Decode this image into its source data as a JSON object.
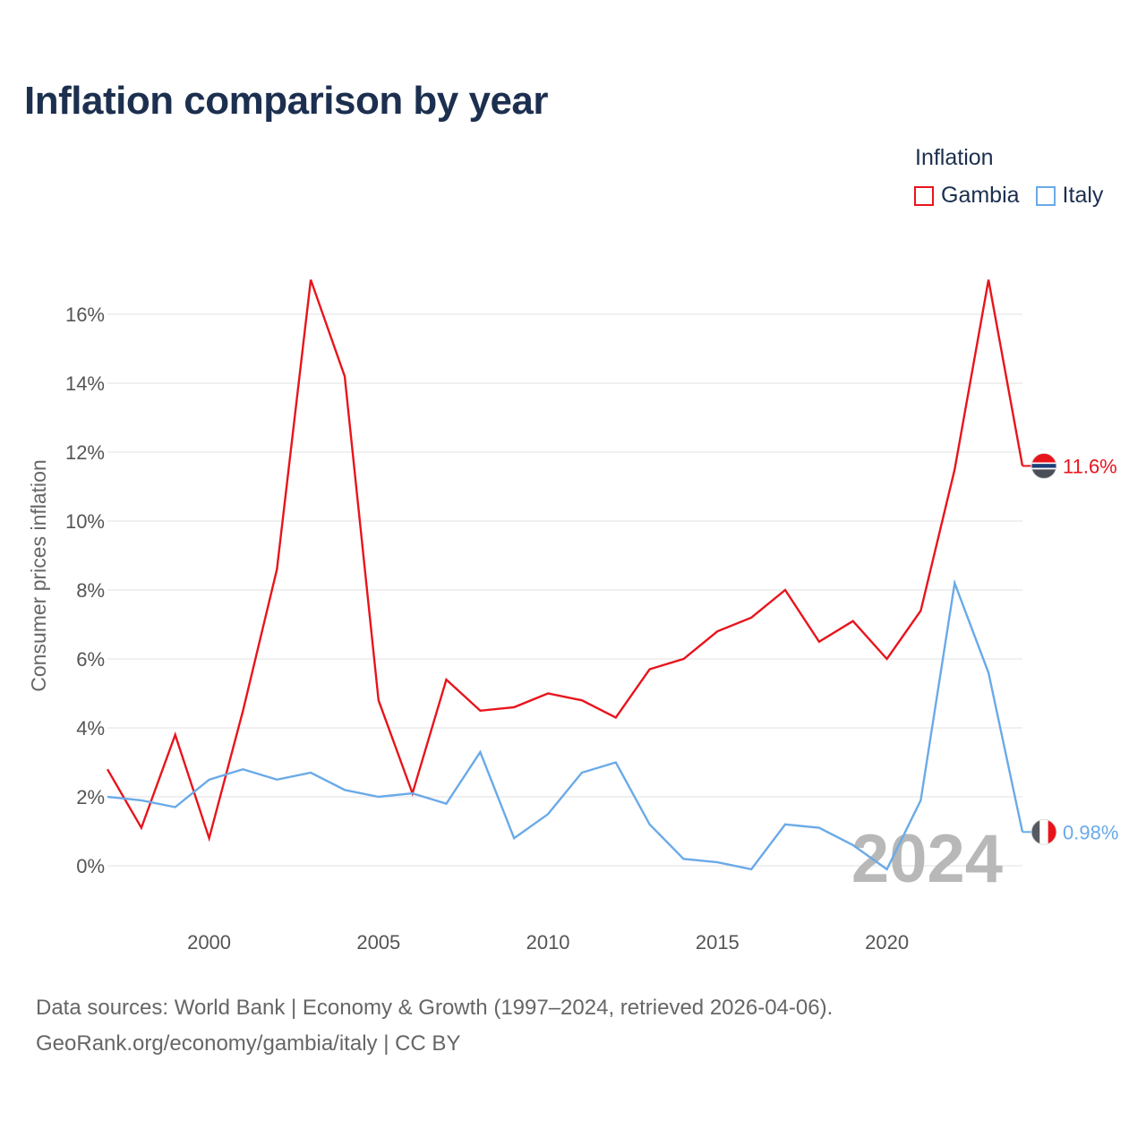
{
  "title": "Inflation comparison by year",
  "legend": {
    "title": "Inflation",
    "items": [
      {
        "label": "Gambia",
        "color": "#e8141c"
      },
      {
        "label": "Italy",
        "color": "#6aaae8"
      }
    ]
  },
  "watermark": "2024",
  "footer": {
    "line1": "Data sources: World Bank | Economy & Growth (1997–2024, retrieved 2026-04-06).",
    "line2": "GeoRank.org/economy/gambia/italy | CC BY"
  },
  "chart_data": {
    "type": "line",
    "title": "Inflation comparison by year",
    "xlabel": "",
    "ylabel": "Consumer prices inflation",
    "xlim": [
      1997,
      2024
    ],
    "ylim": [
      -1,
      17
    ],
    "x_ticks": [
      2000,
      2005,
      2010,
      2015,
      2020
    ],
    "y_ticks": [
      0,
      2,
      4,
      6,
      8,
      10,
      12,
      14,
      16
    ],
    "y_tick_labels": [
      "0%",
      "2%",
      "4%",
      "6%",
      "8%",
      "10%",
      "12%",
      "14%",
      "16%"
    ],
    "grid": true,
    "x": [
      1997,
      1998,
      1999,
      2000,
      2001,
      2002,
      2003,
      2004,
      2005,
      2006,
      2007,
      2008,
      2009,
      2010,
      2011,
      2012,
      2013,
      2014,
      2015,
      2016,
      2017,
      2018,
      2019,
      2020,
      2021,
      2022,
      2023,
      2024
    ],
    "series": [
      {
        "name": "Gambia",
        "color": "#e8141c",
        "end_label": "11.6%",
        "flag": "gambia-flag",
        "values": [
          2.8,
          1.1,
          3.8,
          0.8,
          4.5,
          8.6,
          17.0,
          14.2,
          4.8,
          2.1,
          5.4,
          4.5,
          4.6,
          5.0,
          4.8,
          4.3,
          5.7,
          6.0,
          6.8,
          7.2,
          8.0,
          6.5,
          7.1,
          6.0,
          7.4,
          11.5,
          17.0,
          11.6
        ]
      },
      {
        "name": "Italy",
        "color": "#6aaae8",
        "end_label": "0.98%",
        "flag": "italy-flag",
        "values": [
          2.0,
          1.9,
          1.7,
          2.5,
          2.8,
          2.5,
          2.7,
          2.2,
          2.0,
          2.1,
          1.8,
          3.3,
          0.8,
          1.5,
          2.7,
          3.0,
          1.2,
          0.2,
          0.1,
          -0.1,
          1.2,
          1.1,
          0.6,
          -0.1,
          1.9,
          8.2,
          5.6,
          0.98
        ]
      }
    ]
  }
}
